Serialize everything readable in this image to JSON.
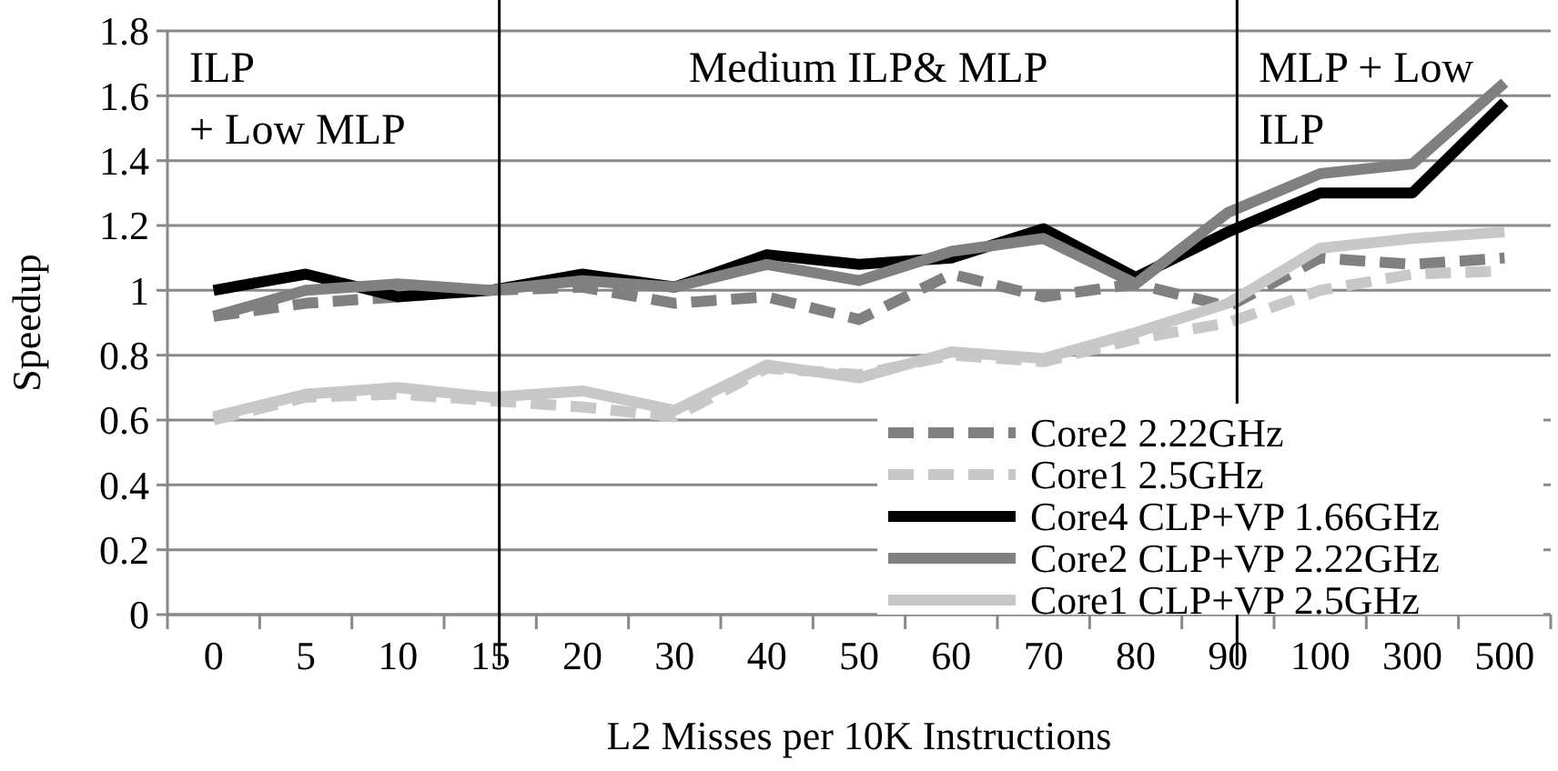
{
  "chart_data": {
    "type": "line",
    "xlabel": "L2 Misses per 10K Instructions",
    "ylabel": "Speedup",
    "categories": [
      "0",
      "5",
      "10",
      "15",
      "20",
      "30",
      "40",
      "50",
      "60",
      "70",
      "80",
      "90",
      "100",
      "300",
      "500"
    ],
    "series": [
      {
        "name": "Core2 2.22GHz",
        "color": "#808080",
        "line_style": "dashed",
        "values": [
          0.92,
          0.96,
          0.98,
          1.0,
          1.01,
          0.96,
          0.98,
          0.91,
          1.05,
          0.98,
          1.02,
          0.95,
          1.1,
          1.08,
          1.1
        ]
      },
      {
        "name": "Core1 2.5GHz",
        "color": "#c8c8c8",
        "line_style": "dashed",
        "values": [
          0.6,
          0.67,
          0.68,
          0.66,
          0.64,
          0.61,
          0.76,
          0.74,
          0.8,
          0.78,
          0.85,
          0.9,
          1.0,
          1.05,
          1.06
        ]
      },
      {
        "name": "Core4 CLP+VP 1.66GHz",
        "color": "#000000",
        "line_style": "solid",
        "values": [
          1.0,
          1.05,
          0.98,
          1.0,
          1.05,
          1.01,
          1.11,
          1.08,
          1.1,
          1.19,
          1.04,
          1.18,
          1.3,
          1.3,
          1.58
        ]
      },
      {
        "name": "Core2 CLP+VP 2.22GHz",
        "color": "#808080",
        "line_style": "solid",
        "values": [
          0.92,
          1.0,
          1.02,
          1.0,
          1.03,
          1.01,
          1.08,
          1.03,
          1.12,
          1.16,
          1.02,
          1.24,
          1.36,
          1.39,
          1.64
        ]
      },
      {
        "name": "Core1 CLP+VP 2.5GHz",
        "color": "#c8c8c8",
        "line_style": "solid",
        "values": [
          0.61,
          0.68,
          0.7,
          0.67,
          0.69,
          0.63,
          0.77,
          0.73,
          0.81,
          0.79,
          0.87,
          0.96,
          1.13,
          1.16,
          1.18
        ]
      }
    ],
    "ylim": [
      0,
      1.8
    ],
    "yticks": [
      0,
      0.2,
      0.4,
      0.6,
      0.8,
      1,
      1.2,
      1.4,
      1.6,
      1.8
    ],
    "grid": "y",
    "legend": "bottom right",
    "marker": "none",
    "ref_lines": [
      {
        "axis": "x",
        "value": "15",
        "color": "#000000"
      },
      {
        "axis": "x",
        "value": "90",
        "color": "#000000"
      }
    ],
    "annotations": [
      "ILP\n+ Low MLP",
      "Medium ILP& MLP",
      "MLP + Low\nILP"
    ]
  }
}
